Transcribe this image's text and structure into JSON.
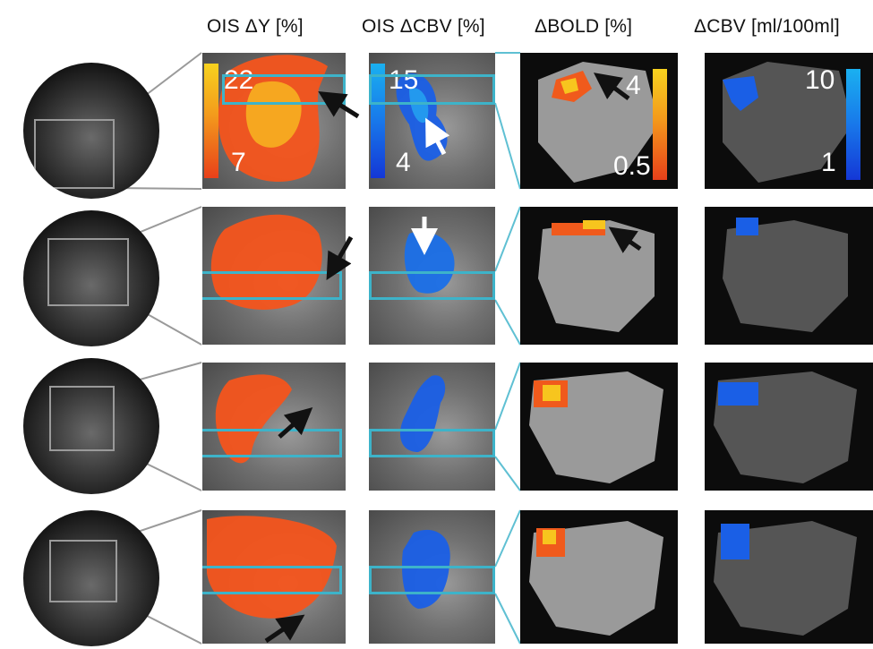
{
  "headers": {
    "ois_dy": "OIS ΔY [%]",
    "ois_dcbv": "OIS ΔCBV [%]",
    "dbold": "ΔBOLD [%]",
    "dcbv": "ΔCBV [ml/100ml]"
  },
  "colorbars": {
    "ois_dy": {
      "max": "22",
      "min": "7"
    },
    "ois_dcbv": {
      "max": "15",
      "min": "4"
    },
    "dbold": {
      "max": "4",
      "min": "0.5"
    },
    "dcbv": {
      "max": "10",
      "min": "1"
    }
  },
  "colors": {
    "roi_box": "#3db3c9",
    "warm_map": "#f05a1c",
    "cool_map": "#1a5fe6",
    "zoom_lines_ois": "#9a9a9a",
    "zoom_lines_mri": "#5fc0d3"
  },
  "rows": 4
}
